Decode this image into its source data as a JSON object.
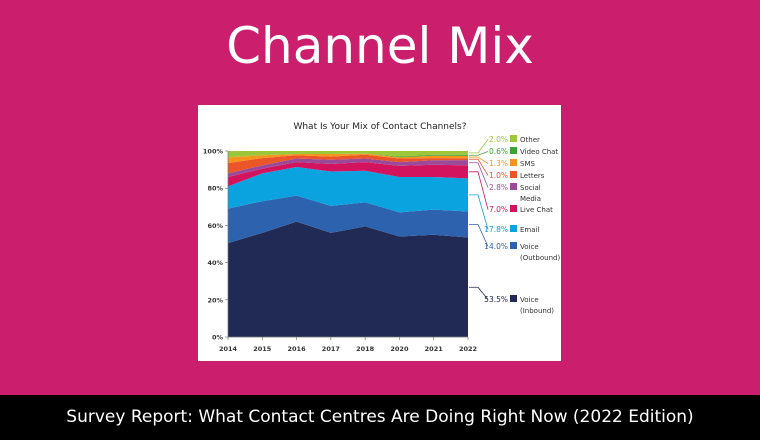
{
  "page": {
    "title": "Channel Mix",
    "footer": "Survey Report: What Contact Centres Are Doing Right Now (2022 Edition)",
    "background_color": "#cb1f6d"
  },
  "chart_data": {
    "type": "area",
    "stacked": true,
    "title": "What Is Your Mix of Contact Channels?",
    "xlabel": "",
    "ylabel": "",
    "ylim": [
      0,
      100
    ],
    "yticks": [
      "0%",
      "20%",
      "40%",
      "60%",
      "80%",
      "100%"
    ],
    "categories": [
      "2014",
      "2015",
      "2016",
      "2017",
      "2018",
      "2020",
      "2021",
      "2022"
    ],
    "grid": false,
    "legend": "right",
    "series": [
      {
        "name": "Voice (Inbound)",
        "name_lines": [
          "Voice",
          "(Inbound)"
        ],
        "label": "53.5%",
        "color": "#212a54",
        "values": [
          50.5,
          56,
          62,
          56,
          59.5,
          54,
          55,
          53.5
        ]
      },
      {
        "name": "Voice (Outbound)",
        "name_lines": [
          "Voice",
          "(Outbound)"
        ],
        "label": "14.0%",
        "color": "#2d63ae",
        "values": [
          18.5,
          17,
          14,
          14.5,
          12.9,
          13,
          13.5,
          14.0
        ]
      },
      {
        "name": "Email",
        "name_lines": [
          "Email"
        ],
        "label": "17.8%",
        "color": "#0ba2e0",
        "values": [
          12,
          15,
          15.4,
          18.5,
          17,
          19,
          17.5,
          17.8
        ]
      },
      {
        "name": "Live Chat",
        "name_lines": [
          "Live Chat"
        ],
        "label": "7.0%",
        "color": "#d4135f",
        "values": [
          5,
          2.5,
          2.6,
          4,
          4.6,
          6,
          6.6,
          7.0
        ]
      },
      {
        "name": "Social Media",
        "name_lines": [
          "Social",
          "Media"
        ],
        "label": "2.8%",
        "color": "#9b4a9a",
        "values": [
          2,
          1.8,
          2,
          2.3,
          2,
          2,
          2.4,
          2.8
        ]
      },
      {
        "name": "Letters",
        "name_lines": [
          "Letters"
        ],
        "label": "1.0%",
        "color": "#ea5628",
        "values": [
          5.5,
          3.9,
          1.7,
          1.7,
          2,
          2,
          1.2,
          1.0
        ]
      },
      {
        "name": "SMS",
        "name_lines": [
          "SMS"
        ],
        "label": "1.3%",
        "color": "#f7941d",
        "values": [
          3.1,
          1.5,
          0.7,
          1.4,
          0.6,
          0.6,
          1.3,
          1.3
        ]
      },
      {
        "name": "Video Chat",
        "name_lines": [
          "Video Chat"
        ],
        "label": "0.6%",
        "color": "#3aa535",
        "values": [
          0,
          0,
          0,
          0,
          0,
          0.4,
          0.5,
          0.6
        ]
      },
      {
        "name": "Other",
        "name_lines": [
          "Other"
        ],
        "label": "2.0%",
        "color": "#9dc63b",
        "values": [
          3.4,
          2.3,
          1.6,
          1.6,
          1.4,
          3,
          2,
          2.0
        ]
      }
    ]
  }
}
